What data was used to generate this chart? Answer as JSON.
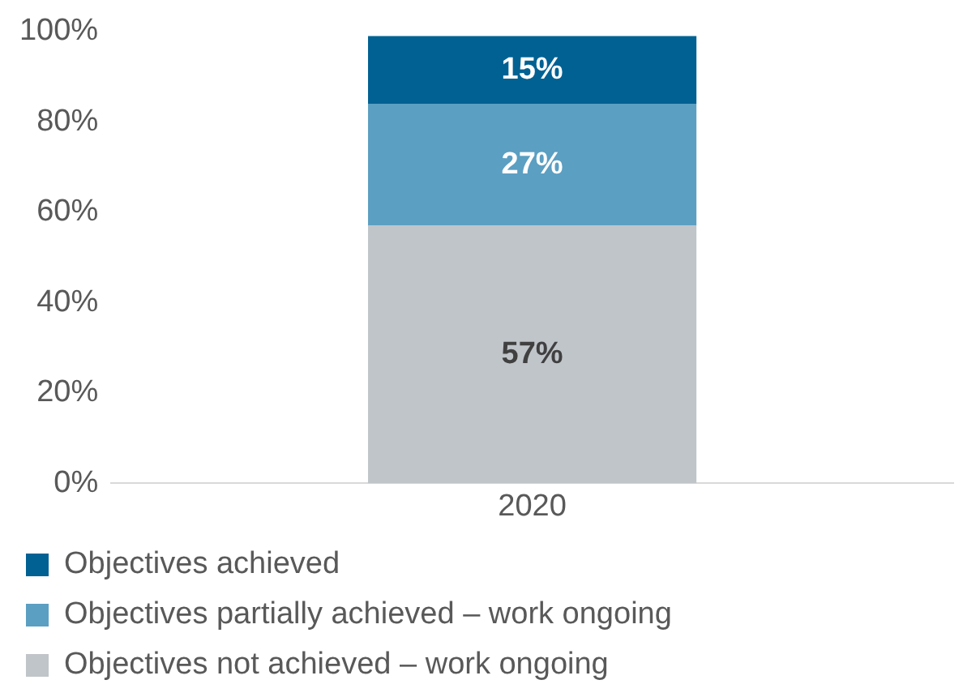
{
  "chart_data": {
    "type": "bar",
    "stacked": true,
    "categories": [
      "2020"
    ],
    "series": [
      {
        "name": "Objectives not achieved – work ongoing",
        "color": "#c0c5c9",
        "values": [
          57
        ],
        "value_labels": [
          "57%"
        ]
      },
      {
        "name": "Objectives partially achieved – work ongoing",
        "color": "#5b9fc2",
        "values": [
          27
        ],
        "value_labels": [
          "27%"
        ]
      },
      {
        "name": "Objectives achieved",
        "color": "#006192",
        "values": [
          15
        ],
        "value_labels": [
          "15%"
        ]
      }
    ],
    "ylim": [
      0,
      100
    ],
    "yticks": [
      {
        "value": 0,
        "label": "0%"
      },
      {
        "value": 20,
        "label": "20%"
      },
      {
        "value": 40,
        "label": "40%"
      },
      {
        "value": 60,
        "label": "60%"
      },
      {
        "value": 80,
        "label": "80%"
      },
      {
        "value": 100,
        "label": "100%"
      }
    ],
    "grid": false,
    "legend": "bottom"
  }
}
